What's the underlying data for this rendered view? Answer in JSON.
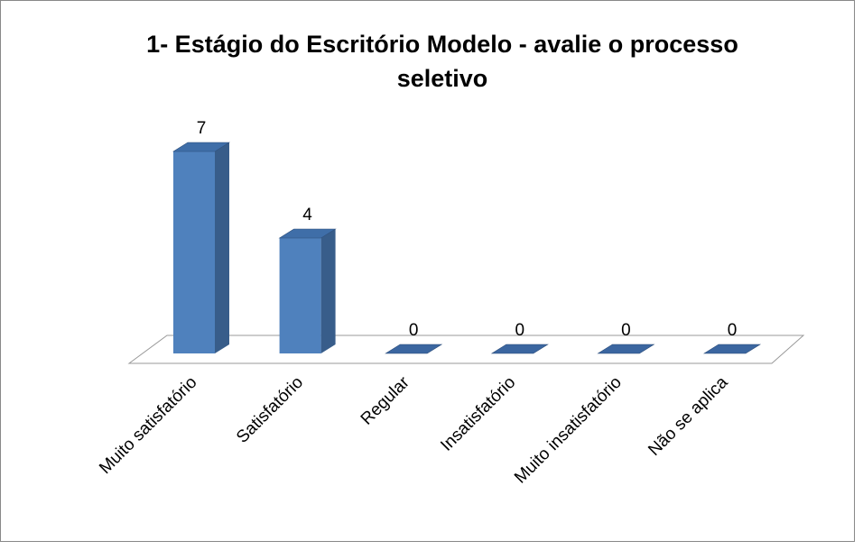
{
  "chart_data": {
    "type": "bar3d",
    "title": "1- Estágio do Escritório Modelo - avalie o processo seletivo",
    "categories": [
      "Muito satisfatório",
      "Satisfatório",
      "Regular",
      "Insatisfatório",
      "Muito insatisfatório",
      "Não se aplica"
    ],
    "values": [
      7,
      4,
      0,
      0,
      0,
      0
    ],
    "color": "#4f81bd"
  }
}
